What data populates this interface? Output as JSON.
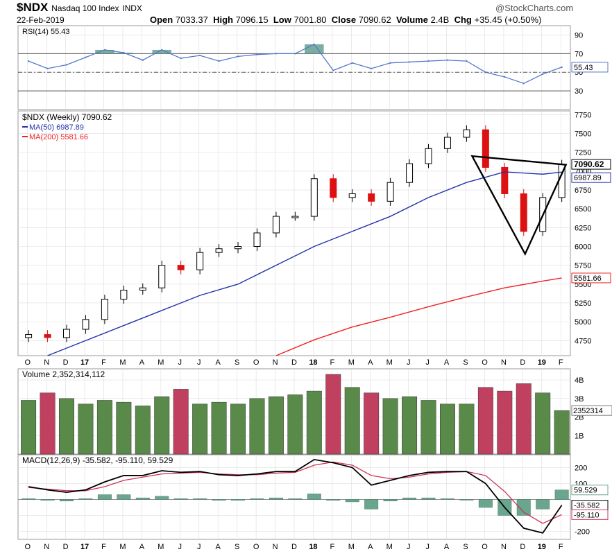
{
  "header": {
    "symbol": "$NDX",
    "name": "Nasdaq 100 Index",
    "exchange": "INDX",
    "date": "22-Feb-2019",
    "brand": "@StockCharts.com",
    "open_label": "Open",
    "open": "7033.37",
    "high_label": "High",
    "high": "7096.15",
    "low_label": "Low",
    "low": "7001.80",
    "close_label": "Close",
    "close": "7090.62",
    "volume_label": "Volume",
    "volume": "2.4B",
    "chg_label": "Chg",
    "chg": "+35.45 (+0.50%)"
  },
  "colors": {
    "up": "#000000",
    "down": "#dd1111",
    "ma50": "#2233aa",
    "ma200": "#ee2222",
    "rsi": "#5577cc",
    "rsi_fill": "#5a9a88",
    "vol_up": "#5a8a4a",
    "vol_down": "#c04060",
    "macd": "#000000",
    "signal": "#cc3355",
    "hist": "#6aa58e",
    "grid": "#dddddd"
  },
  "chart_data": [
    {
      "type": "line",
      "panel": "rsi",
      "legend": "RSI(14) 55.43",
      "y_ticks": [
        30,
        50,
        70,
        90
      ],
      "ylim": [
        10,
        100
      ],
      "reference_lines": [
        30,
        50,
        70
      ],
      "last_value_label": "55.43",
      "x": [
        "2016-10",
        "2016-11",
        "2016-12",
        "2017-01",
        "2017-02",
        "2017-03",
        "2017-04",
        "2017-05",
        "2017-06",
        "2017-07",
        "2017-08",
        "2017-09",
        "2017-10",
        "2017-11",
        "2017-12",
        "2018-01",
        "2018-02",
        "2018-03",
        "2018-04",
        "2018-05",
        "2018-06",
        "2018-07",
        "2018-08",
        "2018-09",
        "2018-10",
        "2018-11",
        "2018-12",
        "2019-01",
        "2019-02"
      ],
      "values": [
        62,
        54,
        58,
        66,
        74,
        71,
        63,
        74,
        65,
        68,
        62,
        67,
        69,
        70,
        70,
        80,
        52,
        60,
        54,
        60,
        61,
        62,
        63,
        62,
        50,
        45,
        38,
        48,
        55.43
      ]
    },
    {
      "type": "candlestick",
      "panel": "price",
      "legend": "$NDX (Weekly) 7090.62",
      "y_ticks": [
        4750,
        5000,
        5250,
        5500,
        5750,
        6000,
        6250,
        6500,
        6750,
        7000,
        7250,
        7500,
        7750
      ],
      "ylim": [
        4550,
        7800
      ],
      "x_ticks": [
        "O",
        "N",
        "D",
        "17",
        "F",
        "M",
        "A",
        "M",
        "J",
        "J",
        "A",
        "S",
        "O",
        "N",
        "D",
        "18",
        "F",
        "M",
        "A",
        "M",
        "J",
        "J",
        "A",
        "S",
        "O",
        "N",
        "D",
        "19",
        "F"
      ],
      "series": [
        {
          "name": "$NDX (Weekly)",
          "label": "7090.62",
          "x": [
            "2016-10",
            "2016-11",
            "2016-12",
            "2017-01",
            "2017-02",
            "2017-03",
            "2017-04",
            "2017-05",
            "2017-06",
            "2017-07",
            "2017-08",
            "2017-09",
            "2017-10",
            "2017-11",
            "2017-12",
            "2018-01",
            "2018-02",
            "2018-03",
            "2018-04",
            "2018-05",
            "2018-06",
            "2018-07",
            "2018-08",
            "2018-09",
            "2018-10",
            "2018-11",
            "2018-12",
            "2019-01",
            "2019-02"
          ],
          "values": [
            4830,
            4790,
            4900,
            5030,
            5300,
            5420,
            5450,
            5750,
            5690,
            5920,
            5970,
            6000,
            6180,
            6400,
            6400,
            6900,
            6650,
            6700,
            6600,
            6850,
            7100,
            7300,
            7450,
            7550,
            7050,
            6700,
            6200,
            6650,
            7090.62
          ]
        },
        {
          "name": "MA(50)",
          "label": "MA(50) 6987.89",
          "x": [
            "2016-11",
            "2017-01",
            "2017-03",
            "2017-05",
            "2017-07",
            "2017-09",
            "2017-11",
            "2018-01",
            "2018-03",
            "2018-05",
            "2018-07",
            "2018-09",
            "2018-11",
            "2019-01",
            "2019-02"
          ],
          "values": [
            4550,
            4750,
            4950,
            5150,
            5350,
            5500,
            5750,
            6000,
            6200,
            6400,
            6650,
            6850,
            6990,
            6960,
            6987.89
          ]
        },
        {
          "name": "MA(200)",
          "label": "MA(200) 5581.66",
          "x": [
            "2017-11",
            "2018-01",
            "2018-03",
            "2018-05",
            "2018-07",
            "2018-09",
            "2018-11",
            "2019-01",
            "2019-02"
          ],
          "values": [
            4550,
            4760,
            4930,
            5060,
            5200,
            5330,
            5450,
            5540,
            5581.66
          ]
        }
      ],
      "price_labels": [
        "7090.62",
        "6987.89",
        "5581.66"
      ]
    },
    {
      "type": "bar",
      "panel": "volume",
      "legend": "Volume 2,352,314,112",
      "y_ticks": [
        "1B",
        "2B",
        "3B",
        "4B"
      ],
      "ylim": [
        0,
        4.6
      ],
      "last_value_label": "2352314",
      "x": [
        "2016-10",
        "2016-11",
        "2016-12",
        "2017-01",
        "2017-02",
        "2017-03",
        "2017-04",
        "2017-05",
        "2017-06",
        "2017-07",
        "2017-08",
        "2017-09",
        "2017-10",
        "2017-11",
        "2017-12",
        "2018-01",
        "2018-02",
        "2018-03",
        "2018-04",
        "2018-05",
        "2018-06",
        "2018-07",
        "2018-08",
        "2018-09",
        "2018-10",
        "2018-11",
        "2018-12",
        "2019-01",
        "2019-02"
      ],
      "values": [
        2.9,
        3.3,
        3.0,
        2.7,
        2.9,
        2.8,
        2.6,
        3.1,
        3.5,
        2.7,
        2.8,
        2.7,
        3.0,
        3.1,
        3.2,
        3.4,
        4.3,
        3.6,
        3.3,
        3.0,
        3.1,
        2.9,
        2.7,
        2.7,
        3.6,
        3.4,
        3.8,
        3.3,
        2.35
      ]
    },
    {
      "type": "line",
      "panel": "macd",
      "legend": "MACD(12,26,9) -35.582, -95.110, 59.529",
      "y_ticks": [
        -200,
        -100,
        0,
        100,
        200
      ],
      "ylim": [
        -250,
        280
      ],
      "value_labels": [
        "59.529",
        "-35.582",
        "-95.110"
      ],
      "x_ticks": [
        "O",
        "N",
        "D",
        "17",
        "F",
        "M",
        "A",
        "M",
        "J",
        "J",
        "A",
        "S",
        "O",
        "N",
        "D",
        "18",
        "F",
        "M",
        "A",
        "M",
        "J",
        "J",
        "A",
        "S",
        "O",
        "N",
        "D",
        "19",
        "F"
      ],
      "series": [
        {
          "name": "MACD",
          "label": "-35.582",
          "x": [
            "2016-10",
            "2016-11",
            "2016-12",
            "2017-01",
            "2017-02",
            "2017-03",
            "2017-04",
            "2017-05",
            "2017-06",
            "2017-07",
            "2017-08",
            "2017-09",
            "2017-10",
            "2017-11",
            "2017-12",
            "2018-01",
            "2018-02",
            "2018-03",
            "2018-04",
            "2018-05",
            "2018-06",
            "2018-07",
            "2018-08",
            "2018-09",
            "2018-10",
            "2018-11",
            "2018-12",
            "2019-01",
            "2019-02"
          ],
          "values": [
            80,
            60,
            45,
            60,
            110,
            150,
            150,
            180,
            170,
            175,
            155,
            150,
            160,
            175,
            175,
            250,
            230,
            200,
            90,
            120,
            150,
            170,
            175,
            175,
            100,
            -50,
            -180,
            -210,
            -35.582
          ]
        },
        {
          "name": "Signal",
          "label": "-95.110",
          "x": [
            "2016-10",
            "2016-11",
            "2016-12",
            "2017-01",
            "2017-02",
            "2017-03",
            "2017-04",
            "2017-05",
            "2017-06",
            "2017-07",
            "2017-08",
            "2017-09",
            "2017-10",
            "2017-11",
            "2017-12",
            "2018-01",
            "2018-02",
            "2018-03",
            "2018-04",
            "2018-05",
            "2018-06",
            "2018-07",
            "2018-08",
            "2018-09",
            "2018-10",
            "2018-11",
            "2018-12",
            "2019-01",
            "2019-02"
          ],
          "values": [
            75,
            65,
            55,
            55,
            80,
            120,
            140,
            160,
            165,
            170,
            160,
            155,
            155,
            165,
            170,
            215,
            235,
            215,
            150,
            130,
            140,
            160,
            170,
            175,
            150,
            50,
            -80,
            -150,
            -95.11
          ]
        },
        {
          "name": "Histogram",
          "label": "59.529",
          "x": [
            "2016-10",
            "2016-11",
            "2016-12",
            "2017-01",
            "2017-02",
            "2017-03",
            "2017-04",
            "2017-05",
            "2017-06",
            "2017-07",
            "2017-08",
            "2017-09",
            "2017-10",
            "2017-11",
            "2017-12",
            "2018-01",
            "2018-02",
            "2018-03",
            "2018-04",
            "2018-05",
            "2018-06",
            "2018-07",
            "2018-08",
            "2018-09",
            "2018-10",
            "2018-11",
            "2018-12",
            "2019-01",
            "2019-02"
          ],
          "values": [
            5,
            -5,
            -10,
            5,
            30,
            30,
            10,
            20,
            5,
            5,
            -5,
            -5,
            5,
            10,
            5,
            35,
            -5,
            -15,
            -60,
            -10,
            10,
            10,
            5,
            0,
            -50,
            -100,
            -100,
            -60,
            59.529
          ]
        }
      ]
    }
  ]
}
